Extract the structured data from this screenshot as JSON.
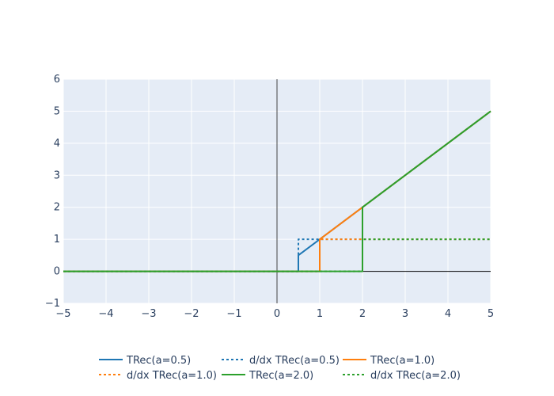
{
  "chart_data": {
    "type": "line",
    "title": "",
    "xlabel": "",
    "ylabel": "",
    "xlim": [
      -5,
      5
    ],
    "ylim": [
      -1,
      6
    ],
    "xticks": [
      -5,
      -4,
      -3,
      -2,
      -1,
      0,
      1,
      2,
      3,
      4,
      5
    ],
    "yticks": [
      -1,
      0,
      1,
      2,
      3,
      4,
      5,
      6
    ],
    "xtick_labels": [
      "−5",
      "−4",
      "−3",
      "−2",
      "−1",
      "0",
      "1",
      "2",
      "3",
      "4",
      "5"
    ],
    "ytick_labels": [
      "−1",
      "0",
      "1",
      "2",
      "3",
      "4",
      "5",
      "6"
    ],
    "grid": true,
    "background": "#e5ecf6",
    "legend_position": "bottom-center",
    "series": [
      {
        "name": "TRec(a=0.5)",
        "color": "#1f77b4",
        "dash": "solid",
        "x": [
          -5,
          0.5,
          0.5,
          5
        ],
        "y": [
          0,
          0,
          0.5,
          5
        ]
      },
      {
        "name": "d/dx TRec(a=0.5)",
        "color": "#1f77b4",
        "dash": "dot",
        "x": [
          -5,
          0.5,
          0.5,
          5
        ],
        "y": [
          0,
          0,
          1,
          1
        ]
      },
      {
        "name": "TRec(a=1.0)",
        "color": "#ff7f0e",
        "dash": "solid",
        "x": [
          -5,
          1,
          1,
          5
        ],
        "y": [
          0,
          0,
          1,
          5
        ]
      },
      {
        "name": "d/dx TRec(a=1.0)",
        "color": "#ff7f0e",
        "dash": "dot",
        "x": [
          -5,
          1,
          1,
          5
        ],
        "y": [
          0,
          0,
          1,
          1
        ]
      },
      {
        "name": "TRec(a=2.0)",
        "color": "#2ca02c",
        "dash": "solid",
        "x": [
          -5,
          2,
          2,
          5
        ],
        "y": [
          0,
          0,
          2,
          5
        ]
      },
      {
        "name": "d/dx TRec(a=2.0)",
        "color": "#2ca02c",
        "dash": "dot",
        "x": [
          -5,
          2,
          2,
          5
        ],
        "y": [
          0,
          0,
          1,
          1
        ]
      }
    ]
  }
}
